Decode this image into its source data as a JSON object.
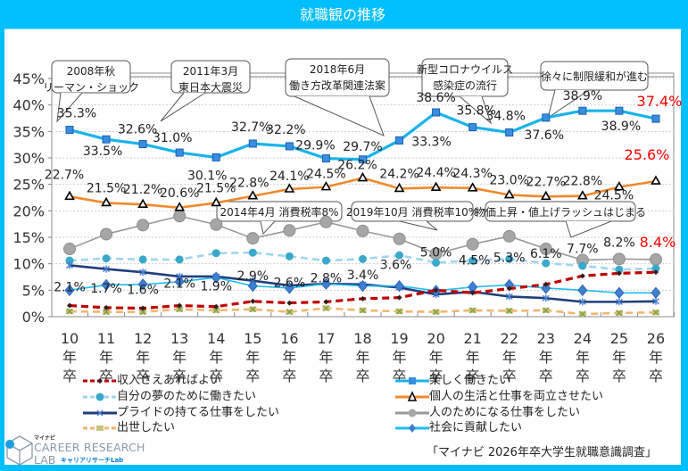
{
  "header": {
    "title": "就職観の推移"
  },
  "source": "「マイナビ 2026年卒大学生就職意識調査」",
  "logo": {
    "small": "マイナビ",
    "main": "CAREER RESEARCH",
    "lab": "LAB",
    "kana": "キャリアリサーチLab"
  },
  "annotations": [
    {
      "id": "lehman",
      "lines": [
        "2008年秋",
        "リーマン・ショック"
      ]
    },
    {
      "id": "quake",
      "lines": [
        "2011年3月",
        "東日本大震災"
      ]
    },
    {
      "id": "reform",
      "lines": [
        "2018年6月",
        "働き方改革関連法案"
      ]
    },
    {
      "id": "covid",
      "lines": [
        "新型コロナウイルス",
        "感染症の流行"
      ]
    },
    {
      "id": "ease",
      "lines": [
        "徐々に制限緩和が進む"
      ]
    },
    {
      "id": "tax8",
      "lines": [
        "2014年4月 消費税率8%"
      ]
    },
    {
      "id": "tax10",
      "lines": [
        "2019年10月 消費税率10%"
      ]
    },
    {
      "id": "price",
      "lines": [
        "物価上昇・値上げラッシュはじまる"
      ]
    }
  ],
  "chart_data": {
    "type": "line",
    "title": "就職観の推移",
    "xlabel": "",
    "ylabel": "",
    "ylim": [
      0,
      45
    ],
    "yticks": [
      "0%",
      "5%",
      "10%",
      "15%",
      "20%",
      "25%",
      "30%",
      "35%",
      "40%",
      "45%"
    ],
    "grid": true,
    "legend_position": "bottom",
    "categories": [
      "10年卒",
      "11年卒",
      "12年卒",
      "13年卒",
      "14年卒",
      "15年卒",
      "16年卒",
      "17年卒",
      "18年卒",
      "19年卒",
      "20年卒",
      "21年卒",
      "22年卒",
      "23年卒",
      "24年卒",
      "25年卒",
      "26年卒"
    ],
    "category_lines": [
      [
        "10",
        "年",
        "卒"
      ],
      [
        "11",
        "年",
        "卒"
      ],
      [
        "12",
        "年",
        "卒"
      ],
      [
        "13",
        "年",
        "卒"
      ],
      [
        "14",
        "年",
        "卒"
      ],
      [
        "15",
        "年",
        "卒"
      ],
      [
        "16",
        "年",
        "卒"
      ],
      [
        "17",
        "年",
        "卒"
      ],
      [
        "18",
        "年",
        "卒"
      ],
      [
        "19",
        "年",
        "卒"
      ],
      [
        "20",
        "年",
        "卒"
      ],
      [
        "21",
        "年",
        "卒"
      ],
      [
        "22",
        "年",
        "卒"
      ],
      [
        "23",
        "年",
        "卒"
      ],
      [
        "24",
        "年",
        "卒"
      ],
      [
        "25",
        "年",
        "卒"
      ],
      [
        "26",
        "年",
        "卒"
      ]
    ],
    "series": [
      {
        "name": "収入さえあればよい",
        "color": "#c00000",
        "dash": true,
        "marker": "diamond-small",
        "labeled": true,
        "values": [
          2.1,
          1.7,
          1.6,
          2.1,
          1.9,
          2.9,
          2.6,
          2.8,
          3.4,
          3.6,
          5.0,
          4.5,
          5.3,
          6.1,
          7.7,
          8.2,
          8.4
        ]
      },
      {
        "name": "楽しく働きたい",
        "color": "#1ab3ea",
        "dash": false,
        "marker": "square",
        "labeled": true,
        "values": [
          35.3,
          33.5,
          32.6,
          31.0,
          30.1,
          32.7,
          32.2,
          29.9,
          29.7,
          33.3,
          38.6,
          35.8,
          34.8,
          37.6,
          38.9,
          38.9,
          37.4
        ]
      },
      {
        "name": "自分の夢のために働きたい",
        "color": "#9fd6ee",
        "markerColor": "#3aa8cb",
        "dash": true,
        "marker": "circle",
        "labeled": false,
        "values": [
          10.6,
          11.0,
          10.8,
          10.8,
          12.0,
          12.1,
          11.4,
          10.6,
          10.9,
          11.6,
          10.2,
          10.6,
          10.9,
          10.1,
          9.6,
          8.9,
          9.1
        ]
      },
      {
        "name": "個人の生活と仕事を両立させたい",
        "color": "#f0892c",
        "dash": false,
        "marker": "triangle",
        "labeled": true,
        "values": [
          22.7,
          21.5,
          21.2,
          20.6,
          21.5,
          22.8,
          24.1,
          24.5,
          26.2,
          24.2,
          24.4,
          24.3,
          23.0,
          22.7,
          22.8,
          24.5,
          25.6
        ]
      },
      {
        "name": "プライドの持てる仕事をしたい",
        "color": "#1f3e7c",
        "dash": false,
        "marker": "star",
        "labeled": false,
        "values": [
          9.7,
          9.0,
          8.4,
          7.6,
          7.6,
          6.8,
          5.9,
          6.2,
          6.1,
          5.5,
          4.2,
          4.7,
          3.8,
          3.5,
          2.8,
          2.8,
          2.9
        ]
      },
      {
        "name": "人のためになる仕事をしたい",
        "color": "#999999",
        "dash": false,
        "marker": "circle-large",
        "labeled": false,
        "values": [
          12.8,
          15.6,
          17.3,
          19.0,
          17.4,
          14.8,
          16.3,
          17.9,
          16.2,
          14.7,
          11.9,
          13.7,
          15.2,
          12.8,
          10.7,
          10.9,
          10.8
        ]
      },
      {
        "name": "出世したい",
        "color": "#f2b56f",
        "markerColor": "#b5b866",
        "dash": true,
        "marker": "x",
        "labeled": false,
        "values": [
          1.0,
          0.9,
          0.9,
          1.4,
          1.2,
          1.4,
          0.9,
          1.6,
          1.2,
          1.0,
          0.9,
          1.2,
          1.1,
          1.2,
          0.5,
          0.7,
          0.8
        ]
      },
      {
        "name": "社会に貢献したい",
        "color": "#22bdf0",
        "markerColor": "#3e7fd1",
        "dash": false,
        "marker": "diamond",
        "labeled": false,
        "values": [
          5.0,
          6.0,
          6.1,
          6.6,
          7.4,
          5.8,
          5.4,
          6.2,
          5.8,
          5.8,
          4.9,
          5.6,
          6.0,
          5.4,
          5.0,
          4.5,
          4.5
        ]
      }
    ],
    "data_labels": {
      "楽しく働きたい": [
        "35.3%",
        "33.5%",
        "32.6%",
        "31.0%",
        "30.1%",
        "32.7%",
        "32.2%",
        "29.9%",
        "29.7%",
        "33.3%",
        "38.6%",
        "35.8%",
        "34.8%",
        "37.6%",
        "38.9%",
        "38.9%",
        "37.4%"
      ],
      "個人の生活と仕事を両立させたい": [
        "22.7%",
        "21.5%",
        "21.2%",
        "20.6%",
        "21.5%",
        "22.8%",
        "24.1%",
        "24.5%",
        "26.2%",
        "24.2%",
        "24.4%",
        "24.3%",
        "23.0%",
        "22.7%",
        "22.8%",
        "24.5%",
        "25.6%"
      ],
      "収入さえあればよい": [
        "2.1%",
        "1.7%",
        "1.6%",
        "2.1%",
        "1.9%",
        "2.9%",
        "2.6%",
        "2.8%",
        "3.4%",
        "3.6%",
        "5.0%",
        "4.5%",
        "5.3%",
        "6.1%",
        "7.7%",
        "8.2%",
        "8.4%"
      ]
    },
    "highlight_color": "#ff0000"
  }
}
